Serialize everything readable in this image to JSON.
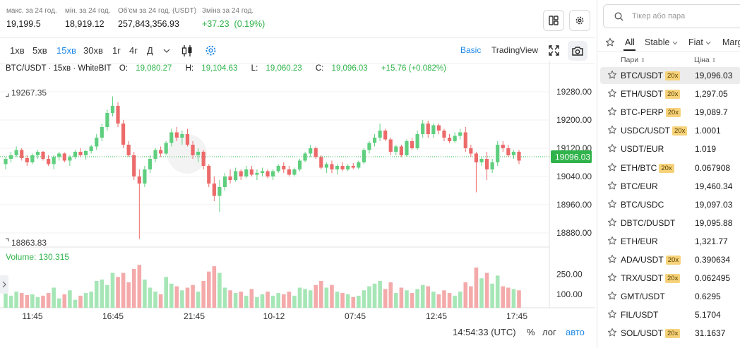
{
  "stats": [
    {
      "label": "макс. за 24 год.",
      "value": "19,199.5"
    },
    {
      "label": "мін. за 24 год.",
      "value": "18,919.12"
    },
    {
      "label": "Об'єм за 24 год. (USDT)",
      "value": "257,843,356.93"
    },
    {
      "label": "Зміна за 24 год.",
      "value": "+37.23",
      "value2": "(0.19%)"
    }
  ],
  "timeframes": [
    "1хв",
    "5хв",
    "15хв",
    "30хв",
    "1г",
    "4г",
    "Д"
  ],
  "active_timeframe": "15хв",
  "view_modes": {
    "basic": "Basic",
    "tradingview": "TradingView"
  },
  "ohlc": {
    "symbol": "BTC/USDT · 15хв · WhiteBIT",
    "o_label": "O:",
    "o": "19,080.27",
    "h_label": "H:",
    "h": "19,104.63",
    "l_label": "L:",
    "l": "19,060.23",
    "c_label": "C:",
    "c": "19,096.03",
    "change": "+15.76 (+0.082%)"
  },
  "volume_label": "Volume: 130.315",
  "footer": {
    "time": "14:54:33 (UTC)",
    "percent": "%",
    "log": "лог",
    "auto": "авто"
  },
  "colors": {
    "up": "#5fcf7f",
    "down": "#ec6a6a",
    "accent": "#1e88e5",
    "price_tag": "#2fb34a"
  },
  "chart_data": {
    "type": "candlestick",
    "price_ticks": [
      "19280.00",
      "19200.00",
      "19120.00",
      "19040.00",
      "18960.00",
      "18880.00"
    ],
    "ylim": [
      18840,
      19320
    ],
    "volume_ticks": [
      "250.00",
      "100.00"
    ],
    "time_ticks": [
      "11:45",
      "16:45",
      "21:45",
      "10-12",
      "07:45",
      "12:45",
      "17:45"
    ],
    "last_price": "19096.03",
    "high_marker": "19267.35",
    "low_marker": "18863.83",
    "candles": [
      [
        19075,
        19095,
        19060,
        19090,
        150
      ],
      [
        19090,
        19110,
        19080,
        19100,
        90
      ],
      [
        19100,
        19125,
        19095,
        19115,
        120
      ],
      [
        19115,
        19120,
        19085,
        19092,
        110
      ],
      [
        19092,
        19100,
        19070,
        19080,
        95
      ],
      [
        19080,
        19105,
        19075,
        19100,
        100
      ],
      [
        19100,
        19115,
        19090,
        19110,
        80
      ],
      [
        19110,
        19112,
        19085,
        19090,
        90
      ],
      [
        19090,
        19100,
        19070,
        19075,
        110
      ],
      [
        19075,
        19100,
        19060,
        19095,
        150
      ],
      [
        19095,
        19110,
        19085,
        19105,
        70
      ],
      [
        19105,
        19108,
        19080,
        19085,
        100
      ],
      [
        19085,
        19100,
        19070,
        19095,
        130
      ],
      [
        19095,
        19115,
        19090,
        19110,
        60
      ],
      [
        19110,
        19120,
        19095,
        19100,
        90
      ],
      [
        19100,
        19115,
        19088,
        19112,
        110
      ],
      [
        19112,
        19130,
        19105,
        19125,
        120
      ],
      [
        19125,
        19160,
        19115,
        19150,
        200
      ],
      [
        19150,
        19190,
        19140,
        19180,
        210
      ],
      [
        19180,
        19230,
        19170,
        19220,
        170
      ],
      [
        19220,
        19267,
        19210,
        19240,
        260
      ],
      [
        19240,
        19250,
        19180,
        19190,
        230
      ],
      [
        19190,
        19200,
        19120,
        19130,
        260
      ],
      [
        19130,
        19140,
        19095,
        19100,
        190
      ],
      [
        19100,
        19110,
        19030,
        19040,
        290
      ],
      [
        19040,
        19060,
        18863,
        19020,
        320
      ],
      [
        19020,
        19070,
        19010,
        19060,
        210
      ],
      [
        19060,
        19100,
        19050,
        19090,
        150
      ],
      [
        19090,
        19120,
        19080,
        19115,
        120
      ],
      [
        19115,
        19125,
        19095,
        19105,
        100
      ],
      [
        19105,
        19140,
        19100,
        19135,
        230
      ],
      [
        19135,
        19175,
        19125,
        19165,
        180
      ],
      [
        19165,
        19180,
        19140,
        19150,
        160
      ],
      [
        19150,
        19170,
        19130,
        19160,
        130
      ],
      [
        19160,
        19175,
        19125,
        19130,
        150
      ],
      [
        19130,
        19140,
        19090,
        19100,
        170
      ],
      [
        19100,
        19120,
        19080,
        19110,
        120
      ],
      [
        19110,
        19115,
        19060,
        19070,
        200
      ],
      [
        19070,
        19075,
        19010,
        19020,
        270
      ],
      [
        19020,
        19040,
        18970,
        18985,
        310
      ],
      [
        18985,
        19030,
        18940,
        19010,
        260
      ],
      [
        19010,
        19050,
        19000,
        19040,
        150
      ],
      [
        19040,
        19060,
        19020,
        19030,
        130
      ],
      [
        19030,
        19065,
        19025,
        19055,
        110
      ],
      [
        19055,
        19060,
        19030,
        19040,
        120
      ],
      [
        19040,
        19070,
        19035,
        19060,
        90
      ],
      [
        19060,
        19070,
        19040,
        19045,
        140
      ],
      [
        19045,
        19060,
        19030,
        19050,
        80
      ],
      [
        19050,
        19065,
        19040,
        19055,
        100
      ],
      [
        19055,
        19060,
        19035,
        19040,
        120
      ],
      [
        19040,
        19060,
        19030,
        19055,
        90
      ],
      [
        19055,
        19075,
        19050,
        19070,
        110
      ],
      [
        19070,
        19080,
        19050,
        19060,
        100
      ],
      [
        19060,
        19070,
        19040,
        19045,
        120
      ],
      [
        19045,
        19065,
        19040,
        19060,
        90
      ],
      [
        19060,
        19090,
        19055,
        19085,
        150
      ],
      [
        19085,
        19110,
        19080,
        19105,
        140
      ],
      [
        19105,
        19130,
        19095,
        19120,
        130
      ],
      [
        19120,
        19125,
        19090,
        19095,
        170
      ],
      [
        19095,
        19100,
        19060,
        19065,
        200
      ],
      [
        19065,
        19080,
        19050,
        19075,
        150
      ],
      [
        19075,
        19085,
        19050,
        19060,
        170
      ],
      [
        19060,
        19075,
        19045,
        19070,
        120
      ],
      [
        19070,
        19080,
        19055,
        19060,
        110
      ],
      [
        19060,
        19075,
        19055,
        19070,
        100
      ],
      [
        19070,
        19078,
        19060,
        19065,
        80
      ],
      [
        19065,
        19085,
        19060,
        19080,
        90
      ],
      [
        19080,
        19120,
        19075,
        19115,
        130
      ],
      [
        19115,
        19140,
        19105,
        19135,
        160
      ],
      [
        19135,
        19160,
        19125,
        19150,
        180
      ],
      [
        19150,
        19190,
        19140,
        19170,
        200
      ],
      [
        19170,
        19175,
        19140,
        19145,
        140
      ],
      [
        19145,
        19150,
        19100,
        19110,
        190
      ],
      [
        19110,
        19130,
        19100,
        19125,
        110
      ],
      [
        19125,
        19130,
        19095,
        19100,
        150
      ],
      [
        19100,
        19145,
        19095,
        19140,
        130
      ],
      [
        19140,
        19150,
        19115,
        19120,
        110
      ],
      [
        19120,
        19170,
        19115,
        19160,
        140
      ],
      [
        19160,
        19200,
        19150,
        19190,
        170
      ],
      [
        19190,
        19198,
        19150,
        19160,
        160
      ],
      [
        19160,
        19190,
        19150,
        19185,
        120
      ],
      [
        19185,
        19190,
        19160,
        19170,
        100
      ],
      [
        19170,
        19175,
        19140,
        19150,
        130
      ],
      [
        19150,
        19160,
        19135,
        19140,
        110
      ],
      [
        19140,
        19165,
        19135,
        19155,
        90
      ],
      [
        19155,
        19175,
        19145,
        19165,
        120
      ],
      [
        19165,
        19180,
        19110,
        19120,
        190
      ],
      [
        19120,
        19130,
        19095,
        19105,
        160
      ],
      [
        19105,
        19110,
        18995,
        19080,
        300
      ],
      [
        19080,
        19095,
        19070,
        19090,
        220
      ],
      [
        19090,
        19110,
        19030,
        19060,
        260
      ],
      [
        19060,
        19090,
        19050,
        19080,
        180
      ],
      [
        19080,
        19140,
        19070,
        19130,
        240
      ],
      [
        19130,
        19140,
        19110,
        19120,
        160
      ],
      [
        19120,
        19130,
        19095,
        19100,
        150
      ],
      [
        19100,
        19115,
        19090,
        19110,
        140
      ],
      [
        19110,
        19115,
        19075,
        19085,
        130
      ]
    ]
  },
  "sidebar": {
    "search_placeholder": "Тікер або пара",
    "tabs": [
      "All",
      "Stable",
      "Fiat",
      "Marg"
    ],
    "col_pair": "Пари",
    "col_price": "Ціна",
    "rows": [
      {
        "pair": "BTC/USDT",
        "lev": "20x",
        "price": "19,096.03"
      },
      {
        "pair": "ETH/USDT",
        "lev": "20x",
        "price": "1,297.05"
      },
      {
        "pair": "BTC-PERP",
        "lev": "20x",
        "price": "19,089.7"
      },
      {
        "pair": "USDC/USDT",
        "lev": "20x",
        "price": "1.0001"
      },
      {
        "pair": "USDT/EUR",
        "lev": "",
        "price": "1.019"
      },
      {
        "pair": "ETH/BTC",
        "lev": "20x",
        "price": "0.067908"
      },
      {
        "pair": "BTC/EUR",
        "lev": "",
        "price": "19,460.34"
      },
      {
        "pair": "BTC/USDC",
        "lev": "",
        "price": "19,097.03"
      },
      {
        "pair": "DBTC/DUSDT",
        "lev": "",
        "price": "19,095.88"
      },
      {
        "pair": "ETH/EUR",
        "lev": "",
        "price": "1,321.77"
      },
      {
        "pair": "ADA/USDT",
        "lev": "20x",
        "price": "0.390634"
      },
      {
        "pair": "TRX/USDT",
        "lev": "20x",
        "price": "0.062495"
      },
      {
        "pair": "GMT/USDT",
        "lev": "",
        "price": "0.6295"
      },
      {
        "pair": "FIL/USDT",
        "lev": "",
        "price": "5.1704"
      },
      {
        "pair": "SOL/USDT",
        "lev": "20x",
        "price": "31.1637"
      }
    ]
  }
}
